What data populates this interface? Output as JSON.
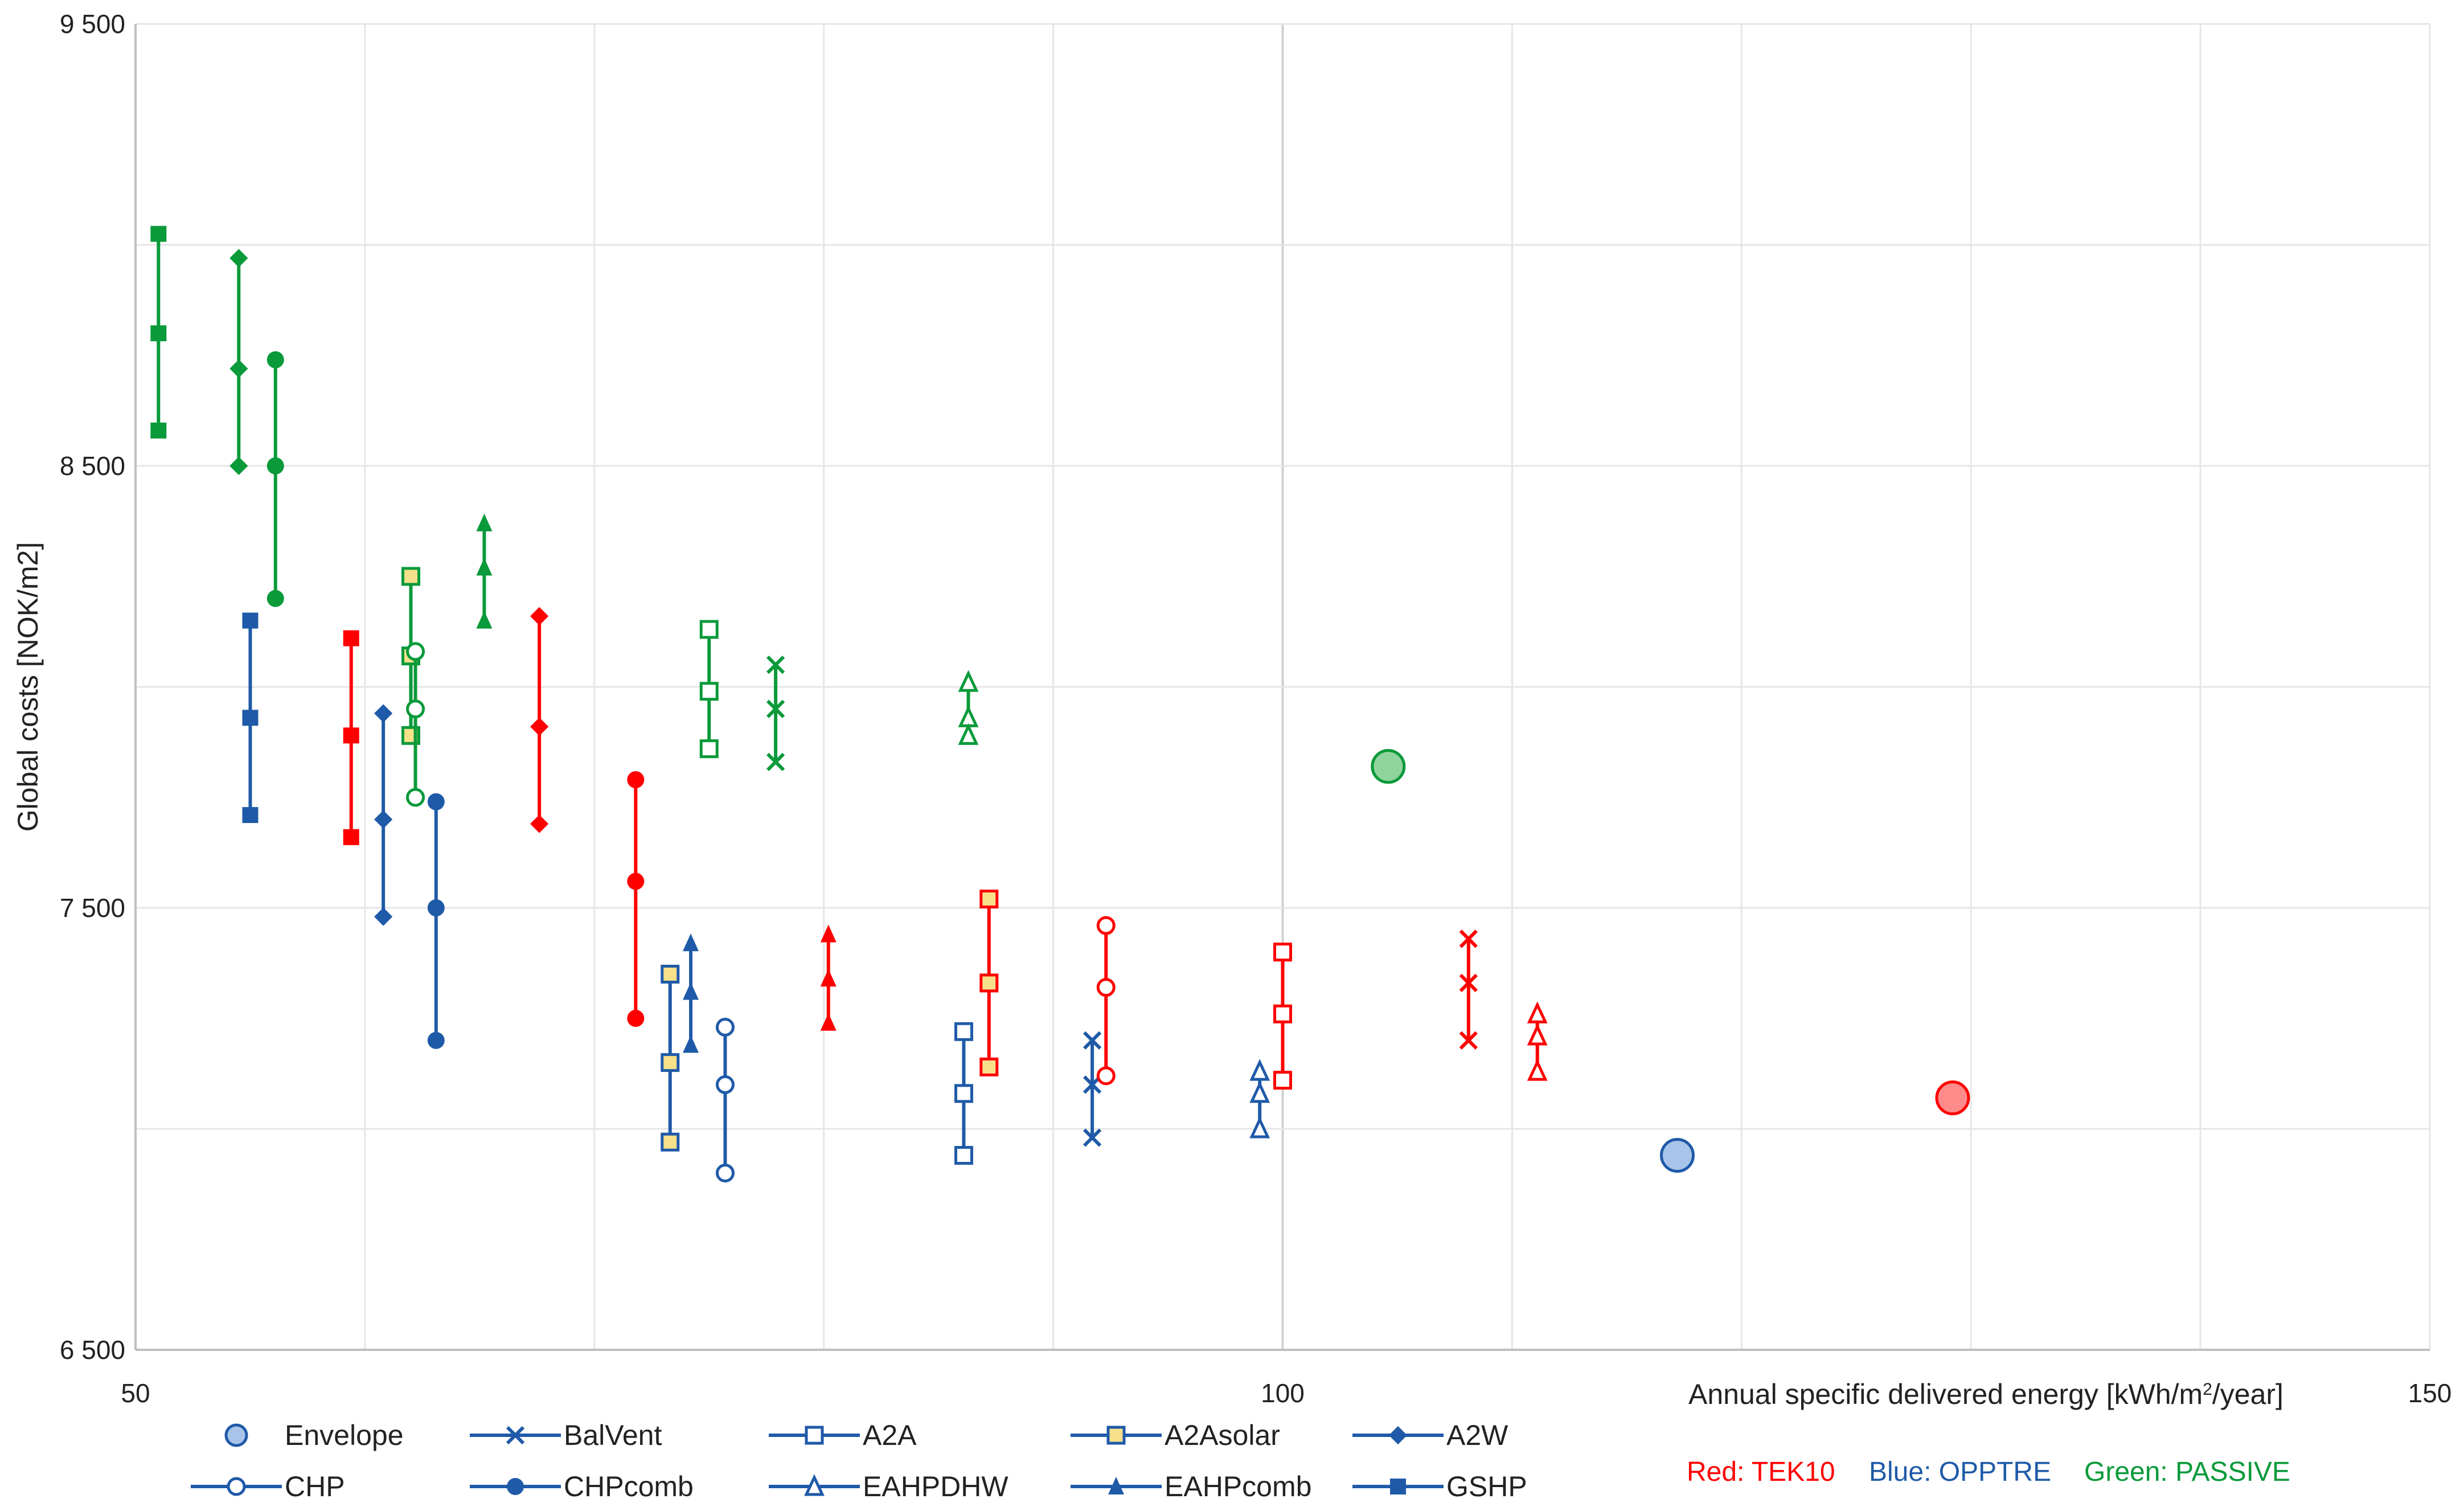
{
  "chart_data": {
    "type": "scatter",
    "title": "",
    "xlabel": "Annual specific delivered energy [kWh/m²/year]",
    "ylabel": "Global costs [NOK/m2]",
    "xlim": [
      50,
      150
    ],
    "ylim": [
      6500,
      9500
    ],
    "x_ticks": [
      50,
      100,
      150
    ],
    "x_tick_labels": [
      "50",
      "100",
      "150"
    ],
    "x_gridlines": [
      50,
      60,
      70,
      80,
      90,
      100,
      110,
      120,
      130,
      140,
      150
    ],
    "y_ticks": [
      6500,
      7500,
      8500,
      9500
    ],
    "y_tick_labels": [
      "6 500",
      "7 500",
      "8 500",
      "9 500"
    ],
    "y_gridlines": [
      6500,
      7000,
      7500,
      8000,
      8500,
      9000,
      9500
    ],
    "grid": true,
    "colors": {
      "TEK10": "#ff0000",
      "OPPTRE": "#1f5aa8",
      "PASSIVE": "#0a9a3a",
      "A2Asolar_fill": "#f7e08a",
      "axis": "#bfbfbf",
      "grid": "#e6e6e6"
    },
    "legend_position": "bottom",
    "legend": [
      {
        "name": "Envelope",
        "marker": "circle-filled-light"
      },
      {
        "name": "BalVent",
        "marker": "x"
      },
      {
        "name": "A2A",
        "marker": "square-open"
      },
      {
        "name": "A2Asolar",
        "marker": "square-yellow"
      },
      {
        "name": "A2W",
        "marker": "diamond"
      },
      {
        "name": "CHP",
        "marker": "circle-open"
      },
      {
        "name": "CHPcomb",
        "marker": "circle-filled"
      },
      {
        "name": "EAHPDHW",
        "marker": "triangle-open"
      },
      {
        "name": "EAHPcomb",
        "marker": "triangle-filled"
      },
      {
        "name": "GSHP",
        "marker": "square-filled"
      }
    ],
    "level_notes": [
      {
        "text": "Red: TEK10",
        "level": "TEK10"
      },
      {
        "text": "Blue: OPPTRE",
        "level": "OPPTRE"
      },
      {
        "text": "Green: PASSIVE",
        "level": "PASSIVE"
      }
    ],
    "series": [
      {
        "measure": "GSHP",
        "level": "PASSIVE",
        "marker": "square-filled",
        "x": 51,
        "y": [
          9025,
          8800,
          8580
        ]
      },
      {
        "measure": "A2W",
        "level": "PASSIVE",
        "marker": "diamond",
        "x": 54.5,
        "y": [
          8970,
          8720,
          8500
        ]
      },
      {
        "measure": "CHPcomb",
        "level": "PASSIVE",
        "marker": "circle-filled",
        "x": 56.1,
        "y": [
          8740,
          8500,
          8200
        ]
      },
      {
        "measure": "A2Asolar",
        "level": "PASSIVE",
        "marker": "square-yellow",
        "x": 62,
        "y": [
          8250,
          8070,
          7890
        ]
      },
      {
        "measure": "CHP",
        "level": "PASSIVE",
        "marker": "circle-open",
        "x": 62.2,
        "y": [
          8080,
          7950,
          7750
        ]
      },
      {
        "measure": "EAHPcomb",
        "level": "PASSIVE",
        "marker": "triangle-filled",
        "x": 65.2,
        "y": [
          8370,
          8270,
          8150
        ]
      },
      {
        "measure": "A2A",
        "level": "PASSIVE",
        "marker": "square-open",
        "x": 75,
        "y": [
          8130,
          7990,
          7860
        ]
      },
      {
        "measure": "BalVent",
        "level": "PASSIVE",
        "marker": "x",
        "x": 77.9,
        "y": [
          8050,
          7950,
          7830
        ]
      },
      {
        "measure": "EAHPDHW",
        "level": "PASSIVE",
        "marker": "triangle-open",
        "x": 86.3,
        "y": [
          8010,
          7930,
          7890
        ]
      },
      {
        "measure": "Envelope",
        "level": "PASSIVE",
        "marker": "circle-filled-light",
        "x": 104.6,
        "y": [
          7820
        ]
      },
      {
        "measure": "GSHP",
        "level": "OPPTRE",
        "marker": "square-filled",
        "x": 55,
        "y": [
          8150,
          7930,
          7710
        ]
      },
      {
        "measure": "A2W",
        "level": "OPPTRE",
        "marker": "diamond",
        "x": 60.8,
        "y": [
          7940,
          7700,
          7480
        ]
      },
      {
        "measure": "CHPcomb",
        "level": "OPPTRE",
        "marker": "circle-filled",
        "x": 63.1,
        "y": [
          7740,
          7500,
          7200
        ]
      },
      {
        "measure": "A2Asolar",
        "level": "OPPTRE",
        "marker": "square-yellow",
        "x": 73.3,
        "y": [
          7350,
          7150,
          6970
        ]
      },
      {
        "measure": "EAHPcomb",
        "level": "OPPTRE",
        "marker": "triangle-filled",
        "x": 74.2,
        "y": [
          7420,
          7310,
          7190
        ]
      },
      {
        "measure": "CHP",
        "level": "OPPTRE",
        "marker": "circle-open",
        "x": 75.7,
        "y": [
          7230,
          7100,
          6900
        ]
      },
      {
        "measure": "A2A",
        "level": "OPPTRE",
        "marker": "square-open",
        "x": 86.1,
        "y": [
          7220,
          7080,
          6940
        ]
      },
      {
        "measure": "BalVent",
        "level": "OPPTRE",
        "marker": "x",
        "x": 91.7,
        "y": [
          7200,
          7100,
          6980
        ]
      },
      {
        "measure": "EAHPDHW",
        "level": "OPPTRE",
        "marker": "triangle-open",
        "x": 99,
        "y": [
          7130,
          7080,
          7000
        ]
      },
      {
        "measure": "Envelope",
        "level": "OPPTRE",
        "marker": "circle-filled-light",
        "x": 117.2,
        "y": [
          6940
        ]
      },
      {
        "measure": "GSHP",
        "level": "TEK10",
        "marker": "square-filled",
        "x": 59.4,
        "y": [
          8110,
          7890,
          7660
        ]
      },
      {
        "measure": "A2W",
        "level": "TEK10",
        "marker": "diamond",
        "x": 67.6,
        "y": [
          8160,
          7910,
          7690
        ]
      },
      {
        "measure": "CHPcomb",
        "level": "TEK10",
        "marker": "circle-filled",
        "x": 71.8,
        "y": [
          7790,
          7560,
          7250
        ]
      },
      {
        "measure": "EAHPcomb",
        "level": "TEK10",
        "marker": "triangle-filled",
        "x": 80.2,
        "y": [
          7440,
          7340,
          7240
        ]
      },
      {
        "measure": "A2Asolar",
        "level": "TEK10",
        "marker": "square-yellow",
        "x": 87.2,
        "y": [
          7520,
          7330,
          7140
        ]
      },
      {
        "measure": "CHP",
        "level": "TEK10",
        "marker": "circle-open",
        "x": 92.3,
        "y": [
          7460,
          7320,
          7120
        ]
      },
      {
        "measure": "A2A",
        "level": "TEK10",
        "marker": "square-open",
        "x": 100,
        "y": [
          7400,
          7260,
          7110
        ]
      },
      {
        "measure": "BalVent",
        "level": "TEK10",
        "marker": "x",
        "x": 108.1,
        "y": [
          7430,
          7330,
          7200
        ]
      },
      {
        "measure": "EAHPDHW",
        "level": "TEK10",
        "marker": "triangle-open",
        "x": 111.1,
        "y": [
          7260,
          7210,
          7130
        ]
      },
      {
        "measure": "Envelope",
        "level": "TEK10",
        "marker": "circle-filled-light",
        "x": 129.2,
        "y": [
          7070
        ]
      }
    ]
  }
}
